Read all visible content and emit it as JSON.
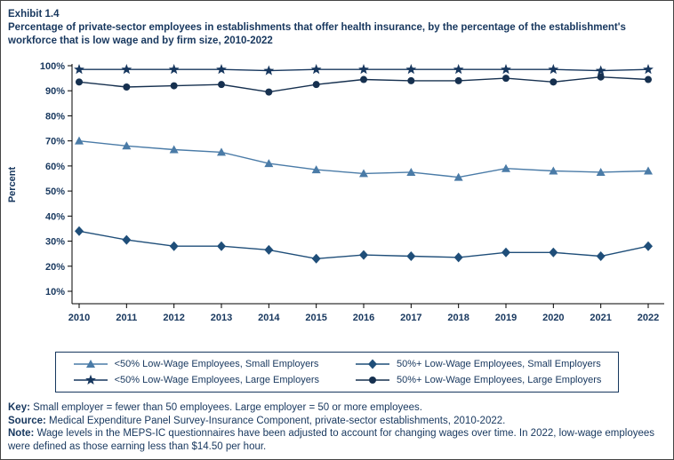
{
  "header": {
    "exhibit": "Exhibit 1.4",
    "title": "Percentage of private-sector employees in establishments that offer health insurance, by the percentage of the establishment's workforce that is low wage and by firm size,  2010-2022"
  },
  "chart_data": {
    "type": "line",
    "title": "Percentage of private-sector employees in establishments that offer health insurance, by the percentage of the establishment's workforce that is low wage and by firm size, 2010-2022",
    "xlabel": "",
    "ylabel": "Percent",
    "x": [
      2010,
      2011,
      2012,
      2013,
      2014,
      2015,
      2016,
      2017,
      2018,
      2019,
      2020,
      2021,
      2022
    ],
    "yticks": [
      10,
      20,
      30,
      40,
      50,
      60,
      70,
      80,
      90,
      100
    ],
    "ylim": [
      5,
      103
    ],
    "grid": false,
    "legend_position": "bottom",
    "series": [
      {
        "name": "<50% Low-Wage Employees, Small Employers",
        "marker": "triangle",
        "color": "#4a7ba7",
        "values": [
          70,
          68,
          66.5,
          65.5,
          61,
          58.5,
          57,
          57.5,
          55.5,
          59,
          58,
          57.5,
          58
        ]
      },
      {
        "name": "50%+ Low-Wage Employees, Small Employers",
        "marker": "diamond",
        "color": "#1f4e79",
        "values": [
          34,
          30.5,
          28,
          28,
          26.5,
          23,
          24.5,
          24,
          23.5,
          25.5,
          25.5,
          24,
          28
        ]
      },
      {
        "name": "<50% Low-Wage Employees, Large Employers",
        "marker": "star",
        "color": "#17375e",
        "values": [
          98.5,
          98.5,
          98.5,
          98.5,
          98,
          98.5,
          98.5,
          98.5,
          98.5,
          98.5,
          98.5,
          98,
          98.5
        ]
      },
      {
        "name": "50%+ Low-Wage Employees, Large Employers",
        "marker": "circle",
        "color": "#16304f",
        "values": [
          93.5,
          91.5,
          92,
          92.5,
          89.5,
          92.5,
          94.5,
          94,
          94,
          95,
          93.5,
          95.5,
          94.5
        ]
      }
    ]
  },
  "footer": {
    "key_label": "Key:",
    "key_text": " Small employer = fewer than 50 employees. Large employer = 50 or more employees.",
    "source_label": "Source:",
    "source_text": " Medical Expenditure Panel Survey-Insurance Component, private-sector establishments, 2010-2022.",
    "note_label": "Note:",
    "note_text": " Wage levels in the MEPS-IC questionnaires have been adjusted to account for changing wages over time. In 2022, low-wage employees were defined as those earning less than $14.50 per hour."
  }
}
